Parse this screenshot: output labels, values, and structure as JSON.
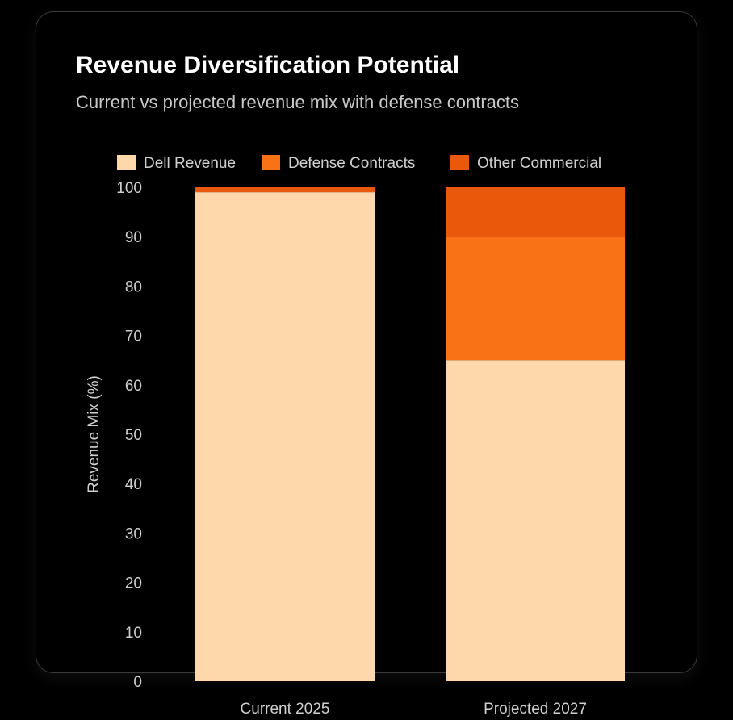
{
  "card": {
    "title": "Revenue Diversification Potential",
    "subtitle": "Current vs projected revenue mix with defense contracts"
  },
  "chart_data": {
    "type": "bar",
    "stacked": true,
    "title": "Revenue Diversification Potential",
    "subtitle": "Current vs projected revenue mix with defense contracts",
    "categories": [
      "Current 2025",
      "Projected 2027"
    ],
    "series": [
      {
        "name": "Dell Revenue",
        "color": "#fed7aa",
        "values": [
          99,
          65
        ]
      },
      {
        "name": "Defense Contracts",
        "color": "#f97316",
        "values": [
          0,
          25
        ]
      },
      {
        "name": "Other Commercial",
        "color": "#ea580c",
        "values": [
          1,
          10
        ]
      }
    ],
    "xlabel": "",
    "ylabel": "Revenue Mix (%)",
    "ylim": [
      0,
      100
    ],
    "yticks": [
      0,
      10,
      20,
      30,
      40,
      50,
      60,
      70,
      80,
      90,
      100
    ],
    "grid": false,
    "legend": "top-center"
  }
}
